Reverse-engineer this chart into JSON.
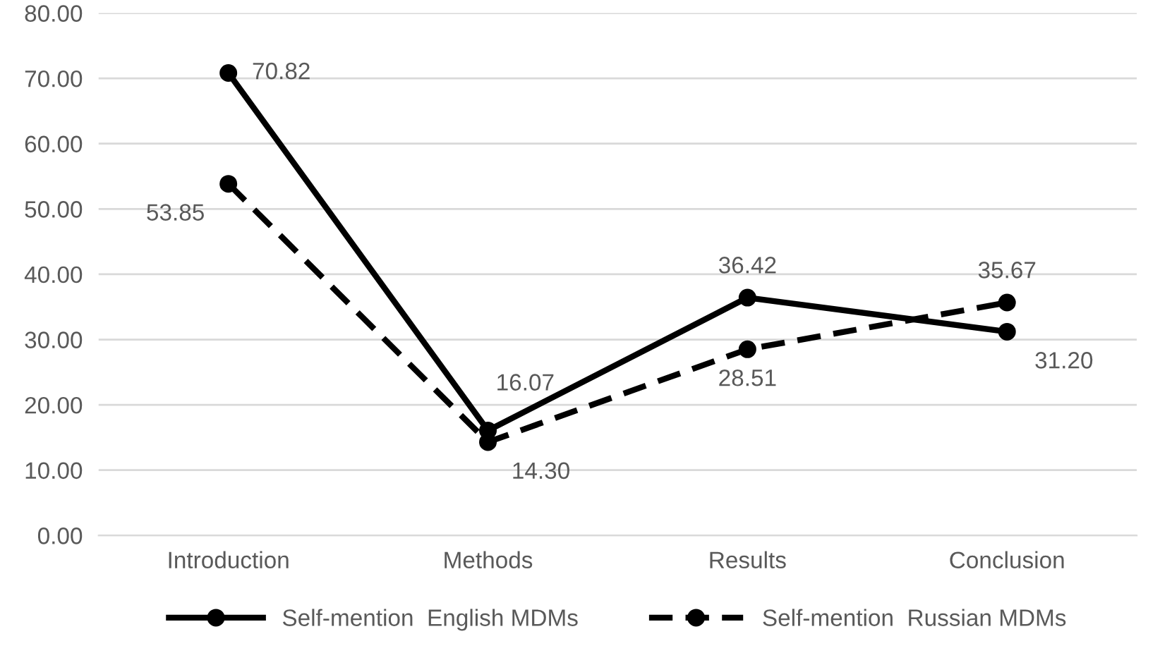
{
  "chart_data": {
    "type": "line",
    "categories": [
      "Introduction",
      "Methods",
      "Results",
      "Conclusion"
    ],
    "series": [
      {
        "name": "Self-mention  English MDMs",
        "color": "#000000",
        "line_style": "solid",
        "values": [
          70.82,
          16.07,
          36.42,
          31.2
        ],
        "value_labels": [
          "70.82",
          "16.07",
          "36.42",
          "31.20"
        ]
      },
      {
        "name": "Self-mention  Russian MDMs",
        "color": "#000000",
        "line_style": "dashed",
        "values": [
          53.85,
          14.3,
          28.51,
          35.67
        ],
        "value_labels": [
          "53.85",
          "14.30",
          "28.51",
          "35.67"
        ]
      }
    ],
    "ylim": [
      0,
      80
    ],
    "yticks": [
      {
        "value": 0,
        "label": "0.00"
      },
      {
        "value": 10,
        "label": "10.00"
      },
      {
        "value": 20,
        "label": "20.00"
      },
      {
        "value": 30,
        "label": "30.00"
      },
      {
        "value": 40,
        "label": "40.00"
      },
      {
        "value": 50,
        "label": "50.00"
      },
      {
        "value": 60,
        "label": "60.00"
      },
      {
        "value": 70,
        "label": "70.00"
      },
      {
        "value": 80,
        "label": "80.00"
      }
    ],
    "grid": "y",
    "legend": "bottom",
    "marker": "circle"
  }
}
